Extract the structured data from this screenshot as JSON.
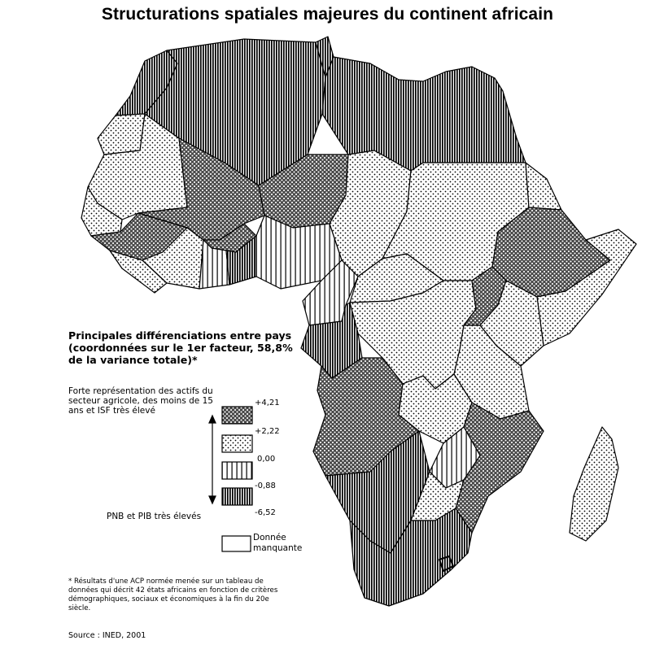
{
  "title": "Structurations spatiales majeures du continent africain",
  "legend": {
    "heading": "Principales différenciations entre pays (coordonnées sur le 1er facteur, 58,8% de la variance totale)*",
    "axis_top": "Forte représentation des actifs du secteur agricole, des moins de 15 ans et ISF très élevé",
    "axis_bottom": "PNB et PIB très élevés",
    "breaks": [
      "+4,21",
      "+2,22",
      "0,00",
      "-0,88",
      "-6,52"
    ],
    "classes": [
      {
        "pattern": "dense-dots",
        "range": [
          "+4,21",
          "+2,22"
        ]
      },
      {
        "pattern": "light-dots",
        "range": [
          "+2,22",
          "0,00"
        ]
      },
      {
        "pattern": "sparse-vertical-lines",
        "range": [
          "0,00",
          "-0,88"
        ]
      },
      {
        "pattern": "dense-vertical-lines",
        "range": [
          "-0,88",
          "-6,52"
        ]
      },
      {
        "pattern": "blank",
        "label": "Donnée manquante"
      }
    ],
    "missing_label": "Donnée manquante"
  },
  "footnote": "* Résultats d'une ACP normée menée sur un tableau de données qui décrit 42 états africains en fonction de critères démographiques, sociaux et économiques à la fin du 20e siècle.",
  "source": "Source : INED, 2001",
  "colors": {
    "ink": "#000000",
    "paper": "#ffffff"
  }
}
